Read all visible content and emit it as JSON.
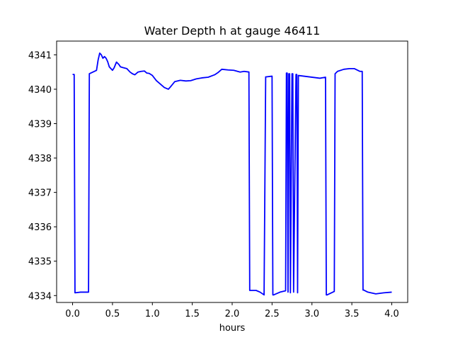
{
  "chart_data": {
    "type": "line",
    "title": "Water Depth h at gauge 46411",
    "xlabel": "hours",
    "ylabel": "",
    "xlim": [
      -0.2,
      4.2
    ],
    "ylim": [
      4333.8,
      4341.4
    ],
    "xticks": [
      0.0,
      0.5,
      1.0,
      1.5,
      2.0,
      2.5,
      3.0,
      3.5,
      4.0
    ],
    "xtick_labels": [
      "0.0",
      "0.5",
      "1.0",
      "1.5",
      "2.0",
      "2.5",
      "3.0",
      "3.5",
      "4.0"
    ],
    "yticks": [
      4334,
      4335,
      4336,
      4337,
      4338,
      4339,
      4340,
      4341
    ],
    "ytick_labels": [
      "4334",
      "4335",
      "4336",
      "4337",
      "4338",
      "4339",
      "4340",
      "4341"
    ],
    "grid": false,
    "line_color": "#0000ff",
    "series": [
      {
        "x": [
          0.0,
          0.02,
          0.03,
          0.1,
          0.2,
          0.21,
          0.3,
          0.32,
          0.34,
          0.36,
          0.38,
          0.4,
          0.42,
          0.44,
          0.46,
          0.5,
          0.52,
          0.55,
          0.58,
          0.6,
          0.63,
          0.68,
          0.72,
          0.75,
          0.78,
          0.82,
          0.86,
          0.9,
          0.93,
          0.96,
          1.0,
          1.05,
          1.1,
          1.15,
          1.2,
          1.22,
          1.28,
          1.35,
          1.42,
          1.48,
          1.55,
          1.62,
          1.7,
          1.78,
          1.82,
          1.87,
          1.95,
          2.02,
          2.1,
          2.15,
          2.21,
          2.22,
          2.23,
          2.3,
          2.35,
          2.4,
          2.42,
          2.43,
          2.5,
          2.51,
          2.52,
          2.6,
          2.67,
          2.68,
          2.69,
          2.7,
          2.71,
          2.72,
          2.73,
          2.75,
          2.76,
          2.77,
          2.8,
          2.81,
          2.82,
          2.83,
          3.1,
          3.17,
          3.18,
          3.19,
          3.28,
          3.29,
          3.32,
          3.4,
          3.47,
          3.53,
          3.6,
          3.63,
          3.64,
          3.65,
          3.7,
          3.8,
          3.9,
          4.0
        ],
        "y": [
          4340.43,
          4340.43,
          4334.08,
          4334.1,
          4334.1,
          4340.45,
          4340.55,
          4340.85,
          4341.05,
          4341.0,
          4340.9,
          4340.95,
          4340.9,
          4340.8,
          4340.65,
          4340.55,
          4340.62,
          4340.79,
          4340.72,
          4340.65,
          4340.63,
          4340.6,
          4340.5,
          4340.45,
          4340.42,
          4340.5,
          4340.52,
          4340.53,
          4340.47,
          4340.46,
          4340.4,
          4340.25,
          4340.15,
          4340.05,
          4340.0,
          4340.05,
          4340.22,
          4340.26,
          4340.24,
          4340.25,
          4340.3,
          4340.33,
          4340.35,
          4340.42,
          4340.48,
          4340.58,
          4340.56,
          4340.55,
          4340.5,
          4340.52,
          4340.5,
          4334.15,
          4334.15,
          4334.15,
          4334.1,
          4334.02,
          4340.36,
          4340.36,
          4340.38,
          4334.02,
          4334.02,
          4334.1,
          4334.14,
          4340.47,
          4340.47,
          4334.1,
          4340.45,
          4340.45,
          4334.08,
          4340.45,
          4340.45,
          4334.1,
          4340.43,
          4340.43,
          4334.08,
          4340.4,
          4340.32,
          4340.35,
          4334.02,
          4334.02,
          4334.12,
          4340.45,
          4340.52,
          4340.58,
          4340.6,
          4340.6,
          4340.52,
          4340.52,
          4334.16,
          4334.16,
          4334.1,
          4334.05,
          4334.08,
          4334.1
        ]
      }
    ]
  }
}
